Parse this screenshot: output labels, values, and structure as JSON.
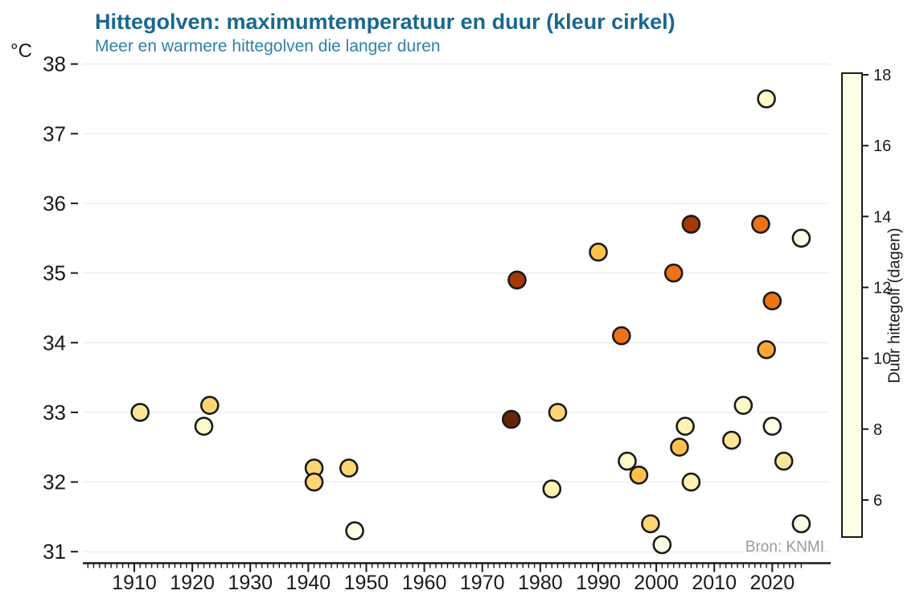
{
  "title": "Hittegolven: maximumtemperatuur en duur (kleur cirkel)",
  "subtitle": "Meer en warmere hittegolven die langer duren",
  "unit_label": "°C",
  "source": "Bron: KNMI",
  "y_axis": {
    "ticks": [
      38,
      37,
      36,
      35,
      34,
      33,
      32,
      31
    ],
    "min": 31,
    "max": 38
  },
  "x_axis": {
    "ticks": [
      1910,
      1920,
      1930,
      1940,
      1950,
      1960,
      1970,
      1980,
      1990,
      2000,
      2010,
      2020
    ],
    "minor_tick_start": 1902,
    "minor_tick_end": 2025
  },
  "colorbar": {
    "label": "Duur hittegolf (dagen)",
    "ticks": [
      18,
      16,
      14,
      12,
      10,
      8,
      6
    ],
    "min": 5,
    "max": 18
  },
  "colors": {
    "title": "#19688f",
    "subtitle": "#2f81a8",
    "grid": "#e7e7e7",
    "axis": "#1a1a1a",
    "point_stroke": "#1a1a1a",
    "source_text": "#9a9a9a",
    "colormap_stops": [
      "#ffffe5",
      "#fff7bc",
      "#fee391",
      "#fec44f",
      "#fe9929",
      "#ec7014",
      "#cc4c02",
      "#993404",
      "#662506"
    ]
  },
  "chart_data": {
    "type": "scatter",
    "title": "Hittegolven: maximumtemperatuur en duur (kleur cirkel)",
    "subtitle": "Meer en warmere hittegolven die langer duren",
    "xlabel": "",
    "ylabel": "°C",
    "x_range": [
      1902,
      2025
    ],
    "ylim": [
      31,
      38
    ],
    "grid": "horizontal",
    "color_scale": {
      "label": "Duur hittegolf (dagen)",
      "range": [
        5,
        18
      ],
      "colormap": "YlOrBr"
    },
    "source": "Bron: KNMI",
    "points": [
      {
        "year": 1911,
        "max_temp_c": 33.0,
        "duration_days": 8
      },
      {
        "year": 1922,
        "max_temp_c": 32.8,
        "duration_days": 6
      },
      {
        "year": 1923,
        "max_temp_c": 33.1,
        "duration_days": 9
      },
      {
        "year": 1941,
        "max_temp_c": 32.2,
        "duration_days": 9
      },
      {
        "year": 1941,
        "max_temp_c": 32.0,
        "duration_days": 9
      },
      {
        "year": 1947,
        "max_temp_c": 32.2,
        "duration_days": 9
      },
      {
        "year": 1948,
        "max_temp_c": 31.3,
        "duration_days": 5
      },
      {
        "year": 1975,
        "max_temp_c": 32.9,
        "duration_days": 18
      },
      {
        "year": 1976,
        "max_temp_c": 34.9,
        "duration_days": 16
      },
      {
        "year": 1982,
        "max_temp_c": 31.9,
        "duration_days": 7
      },
      {
        "year": 1983,
        "max_temp_c": 33.0,
        "duration_days": 9
      },
      {
        "year": 1990,
        "max_temp_c": 35.3,
        "duration_days": 10
      },
      {
        "year": 1994,
        "max_temp_c": 34.1,
        "duration_days": 13
      },
      {
        "year": 1995,
        "max_temp_c": 32.3,
        "duration_days": 6
      },
      {
        "year": 1997,
        "max_temp_c": 32.1,
        "duration_days": 10
      },
      {
        "year": 1999,
        "max_temp_c": 31.4,
        "duration_days": 9
      },
      {
        "year": 2001,
        "max_temp_c": 31.1,
        "duration_days": 5
      },
      {
        "year": 2003,
        "max_temp_c": 35.0,
        "duration_days": 13
      },
      {
        "year": 2004,
        "max_temp_c": 32.5,
        "duration_days": 10
      },
      {
        "year": 2005,
        "max_temp_c": 32.8,
        "duration_days": 7
      },
      {
        "year": 2006,
        "max_temp_c": 35.7,
        "duration_days": 16
      },
      {
        "year": 2006,
        "max_temp_c": 32.0,
        "duration_days": 7
      },
      {
        "year": 2013,
        "max_temp_c": 32.6,
        "duration_days": 8
      },
      {
        "year": 2015,
        "max_temp_c": 33.1,
        "duration_days": 6
      },
      {
        "year": 2018,
        "max_temp_c": 35.7,
        "duration_days": 13
      },
      {
        "year": 2019,
        "max_temp_c": 37.5,
        "duration_days": 6
      },
      {
        "year": 2019,
        "max_temp_c": 33.9,
        "duration_days": 11
      },
      {
        "year": 2020,
        "max_temp_c": 34.6,
        "duration_days": 13
      },
      {
        "year": 2020,
        "max_temp_c": 32.8,
        "duration_days": 5
      },
      {
        "year": 2022,
        "max_temp_c": 32.3,
        "duration_days": 8
      },
      {
        "year": 2025,
        "max_temp_c": 35.5,
        "duration_days": 5
      },
      {
        "year": 2025,
        "max_temp_c": 31.4,
        "duration_days": 5
      }
    ]
  }
}
